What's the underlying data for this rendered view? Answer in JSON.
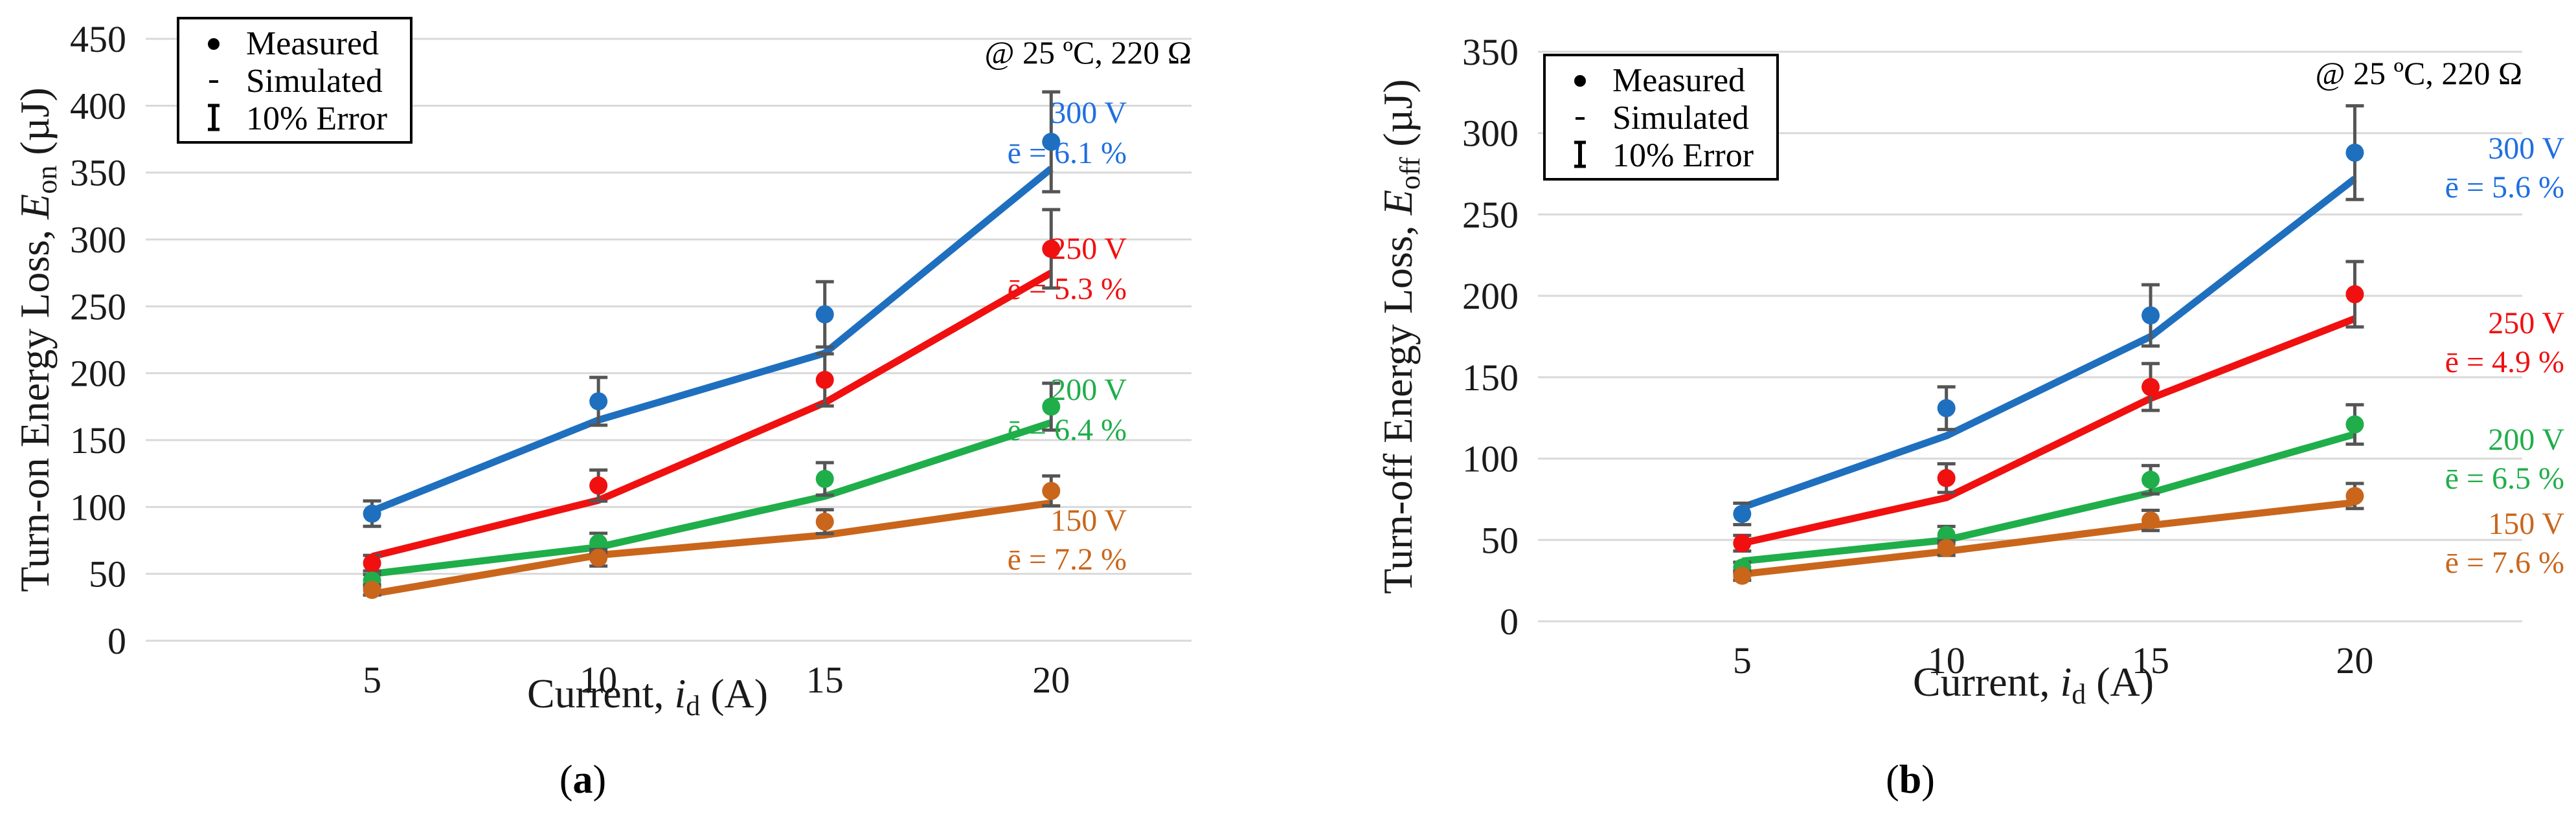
{
  "chart_data": [
    {
      "type": "line",
      "panel_label": "(a)",
      "panel_letter": "a",
      "x": [
        5,
        10,
        15,
        20
      ],
      "xlabel_prefix": "Current, ",
      "xlabel_var": "i",
      "xlabel_sub": "d",
      "xlabel_suffix": " (A)",
      "ylabel_prefix": "Turn-on Energy Loss, ",
      "ylabel_var": "E",
      "ylabel_sub": "on",
      "ylabel_suffix": " (µJ)",
      "ylim": [
        0,
        450
      ],
      "yticks": [
        0,
        50,
        100,
        150,
        200,
        250,
        300,
        350,
        400,
        450
      ],
      "xticks": [
        5,
        10,
        15,
        20
      ],
      "condition": "@ 25 ºC, 220 Ω",
      "legend": [
        "Measured",
        "Simulated",
        "10% Error"
      ],
      "series": [
        {
          "name": "300 V",
          "color": "#1f6fbf",
          "label_color": "#1f6fe0",
          "error": "ē = 6.1 %",
          "simulated": [
            97,
            165,
            215,
            353
          ],
          "measured": [
            95,
            179,
            244,
            373
          ]
        },
        {
          "name": "250 V",
          "color": "#f01010",
          "label_color": "#f01010",
          "error": "ē = 5.3 %",
          "simulated": [
            63,
            105,
            178,
            275
          ],
          "measured": [
            58,
            116,
            195,
            293
          ]
        },
        {
          "name": "200 V",
          "color": "#1fae4a",
          "label_color": "#1fae4a",
          "error": "ē = 6.4 %",
          "simulated": [
            50,
            70,
            108,
            163
          ],
          "measured": [
            45,
            73,
            121,
            175
          ]
        },
        {
          "name": "150 V",
          "color": "#c9661c",
          "label_color": "#c9661c",
          "error": "ē = 7.2 %",
          "simulated": [
            35,
            64,
            79,
            103
          ],
          "measured": [
            38,
            62,
            89,
            112
          ]
        }
      ]
    },
    {
      "type": "line",
      "panel_label": "(b)",
      "panel_letter": "b",
      "x": [
        5,
        10,
        15,
        20
      ],
      "xlabel_prefix": "Current, ",
      "xlabel_var": "i",
      "xlabel_sub": "d",
      "xlabel_suffix": " (A)",
      "ylabel_prefix": "Turn-off Energy Loss, ",
      "ylabel_var": "E",
      "ylabel_sub": "off",
      "ylabel_suffix": " (µJ)",
      "ylim": [
        0,
        350
      ],
      "yticks": [
        0,
        50,
        100,
        150,
        200,
        250,
        300,
        350
      ],
      "xticks": [
        5,
        10,
        15,
        20
      ],
      "condition": "@ 25 ºC, 220 Ω",
      "legend": [
        "Measured",
        "Simulated",
        "10% Error"
      ],
      "series": [
        {
          "name": "300 V",
          "color": "#1f6fbf",
          "label_color": "#1f6fe0",
          "error": "ē = 5.6 %",
          "simulated": [
            70,
            114,
            175,
            272
          ],
          "measured": [
            66,
            131,
            188,
            288
          ]
        },
        {
          "name": "250 V",
          "color": "#f01010",
          "label_color": "#f01010",
          "error": "ē = 4.9 %",
          "simulated": [
            48,
            76,
            137,
            186
          ],
          "measured": [
            48,
            88,
            144,
            201
          ]
        },
        {
          "name": "200 V",
          "color": "#1fae4a",
          "label_color": "#1fae4a",
          "error": "ē = 6.5 %",
          "simulated": [
            37,
            50,
            79,
            115
          ],
          "measured": [
            33,
            53,
            87,
            121
          ]
        },
        {
          "name": "150 V",
          "color": "#c9661c",
          "label_color": "#c9661c",
          "error": "ē = 7.6 %",
          "simulated": [
            29,
            43,
            59,
            73
          ],
          "measured": [
            28,
            45,
            62,
            77
          ]
        }
      ]
    }
  ]
}
